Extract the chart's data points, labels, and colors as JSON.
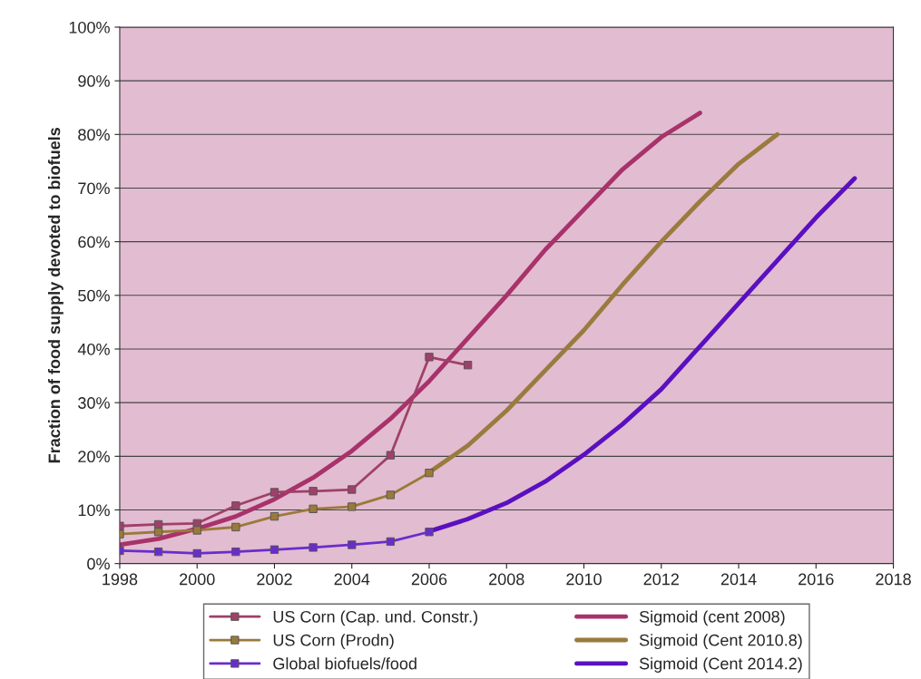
{
  "chart_data": {
    "type": "line",
    "ylabel": "Fraction of food supply devoted to biofuels",
    "xlim": [
      1998,
      2018
    ],
    "xticks": [
      1998,
      2000,
      2002,
      2004,
      2006,
      2008,
      2010,
      2012,
      2014,
      2016,
      2018
    ],
    "ylim": [
      0,
      100
    ],
    "yticks": [
      {
        "value": 0,
        "label": "0%"
      },
      {
        "value": 10,
        "label": "10%"
      },
      {
        "value": 20,
        "label": "20%"
      },
      {
        "value": 30,
        "label": "30%"
      },
      {
        "value": 40,
        "label": "40%"
      },
      {
        "value": 50,
        "label": "50%"
      },
      {
        "value": 60,
        "label": "60%"
      },
      {
        "value": 70,
        "label": "70%"
      },
      {
        "value": 80,
        "label": "80%"
      },
      {
        "value": 90,
        "label": "90%"
      },
      {
        "value": 100,
        "label": "100%"
      }
    ],
    "grid": "y",
    "legend": "bottom",
    "series": [
      {
        "name": "US Corn (Cap. und. Constr.)",
        "color": "#a0406a",
        "marker": "square",
        "x": [
          1998,
          1999,
          2000,
          2001,
          2002,
          2003,
          2004,
          2005,
          2006,
          2007
        ],
        "values": [
          7,
          7.3,
          7.5,
          10.8,
          13.3,
          13.5,
          13.8,
          20.2,
          38.5,
          37
        ]
      },
      {
        "name": "Sigmoid (cent 2008)",
        "color": "#a8326a",
        "marker": "none",
        "x": [
          1998,
          1999,
          2000,
          2001,
          2002,
          2003,
          2004,
          2005,
          2006,
          2007,
          2008,
          2009,
          2010,
          2011,
          2012,
          2013
        ],
        "values": [
          3.5,
          4.6,
          6.5,
          8.8,
          12,
          16,
          21,
          27,
          34,
          42,
          50,
          58.5,
          66,
          73.5,
          79.5,
          84
        ]
      },
      {
        "name": "US Corn (Prodn)",
        "color": "#9a7a3a",
        "marker": "square",
        "x": [
          1998,
          1999,
          2000,
          2001,
          2002,
          2003,
          2004,
          2005,
          2006
        ],
        "values": [
          5.5,
          5.9,
          6.2,
          6.8,
          8.8,
          10.2,
          10.6,
          12.8,
          16.9
        ]
      },
      {
        "name": "Sigmoid (Cent 2010.8)",
        "color": "#9a7b3f",
        "marker": "none",
        "x": [
          2006,
          2007,
          2008,
          2009,
          2010,
          2011,
          2012,
          2013,
          2014,
          2015
        ],
        "values": [
          17,
          22,
          28.5,
          36,
          43.5,
          52,
          60,
          67.5,
          74.5,
          80
        ]
      },
      {
        "name": "Global biofuels/food",
        "color": "#6a2ccf",
        "marker": "square",
        "x": [
          1998,
          1999,
          2000,
          2001,
          2002,
          2003,
          2004,
          2005,
          2006
        ],
        "values": [
          2.4,
          2.2,
          1.9,
          2.2,
          2.6,
          3,
          3.5,
          4.1,
          5.9
        ]
      },
      {
        "name": "Sigmoid (Cent 2014.2)",
        "color": "#5a10c0",
        "marker": "none",
        "x": [
          2006,
          2007,
          2008,
          2009,
          2010,
          2011,
          2012,
          2013,
          2014,
          2015,
          2016,
          2017
        ],
        "values": [
          6,
          8.3,
          11.3,
          15.3,
          20.3,
          26,
          32.5,
          40.5,
          48.5,
          56.5,
          64.5,
          71.8
        ]
      }
    ]
  }
}
